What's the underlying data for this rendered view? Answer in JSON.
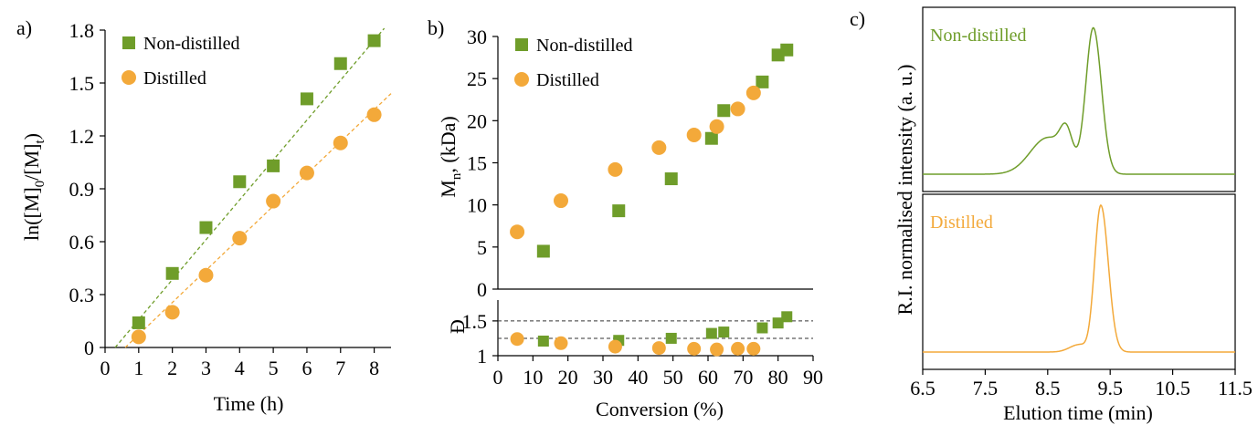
{
  "colors": {
    "non_distilled": "#6f9d2a",
    "distilled": "#f3a93a",
    "axis": "#000000"
  },
  "panels": {
    "a": {
      "letter": "a)",
      "legend": [
        "Non-distilled",
        "Distilled"
      ]
    },
    "b": {
      "letter": "b)",
      "legend": [
        "Non-distilled",
        "Distilled"
      ]
    },
    "c": {
      "letter": "c)",
      "top_label": "Non-distilled",
      "bottom_label": "Distilled"
    }
  },
  "chart_data": [
    {
      "id": "a",
      "type": "scatter",
      "xlabel": "Time (h)",
      "ylabel": "ln([M]0/[M]t)",
      "xlim": [
        0,
        8.5
      ],
      "ylim": [
        0,
        1.8
      ],
      "xticks": [
        "0",
        "1",
        "2",
        "3",
        "4",
        "5",
        "6",
        "7",
        "8"
      ],
      "yticks": [
        "0",
        "0.3",
        "0.6",
        "0.9",
        "1.2",
        "1.5",
        "1.8"
      ],
      "legend_position": "top-left",
      "series": [
        {
          "name": "Non-distilled",
          "marker": "square",
          "x": [
            1,
            2,
            3,
            4,
            5,
            6,
            7,
            8
          ],
          "y": [
            0.14,
            0.42,
            0.68,
            0.94,
            1.03,
            1.41,
            1.61,
            1.74
          ],
          "fit": [
            [
              0.3,
              0
            ],
            [
              8.3,
              1.81
            ]
          ]
        },
        {
          "name": "Distilled",
          "marker": "circle",
          "x": [
            1,
            2,
            3,
            4,
            5,
            6,
            7,
            8
          ],
          "y": [
            0.06,
            0.2,
            0.41,
            0.62,
            0.83,
            0.99,
            1.16,
            1.32
          ],
          "fit": [
            [
              0.6,
              0
            ],
            [
              8.5,
              1.44
            ]
          ]
        }
      ]
    },
    {
      "id": "b_top",
      "type": "scatter",
      "xlabel": "Conversion (%)",
      "ylabel": "Mn, (kDa)",
      "ylabel_main": "M",
      "ylabel_sub": "n",
      "ylabel_rest": ", (kDa)",
      "xlim": [
        0,
        90
      ],
      "ylim": [
        0,
        30
      ],
      "xticks": [
        "0",
        "10",
        "20",
        "30",
        "40",
        "50",
        "60",
        "70",
        "80",
        "90"
      ],
      "yticks": [
        "0",
        "5",
        "10",
        "15",
        "20",
        "25",
        "30"
      ],
      "legend_position": "top-left",
      "series": [
        {
          "name": "Non-distilled",
          "marker": "square",
          "x": [
            13,
            34.5,
            49.5,
            61,
            64.5,
            75.5,
            80,
            82.5
          ],
          "y": [
            4.5,
            9.3,
            13.1,
            17.9,
            21.2,
            24.6,
            27.8,
            28.4
          ]
        },
        {
          "name": "Distilled",
          "marker": "circle",
          "x": [
            5.5,
            18,
            33.5,
            46,
            56,
            62.5,
            68.5,
            73
          ],
          "y": [
            6.8,
            10.5,
            14.2,
            16.8,
            18.3,
            19.3,
            21.4,
            23.3
          ]
        }
      ]
    },
    {
      "id": "b_bottom",
      "type": "scatter",
      "ylabel": "Đ",
      "xlim": [
        0,
        90
      ],
      "ylim": [
        1,
        1.8
      ],
      "yticks": [
        "1",
        "1.5"
      ],
      "reference_lines": [
        1.25,
        1.5
      ],
      "series": [
        {
          "name": "Non-distilled",
          "marker": "square",
          "x": [
            13,
            34.5,
            49.5,
            61,
            64.5,
            75.5,
            80,
            82.5
          ],
          "y": [
            1.21,
            1.22,
            1.25,
            1.32,
            1.34,
            1.4,
            1.47,
            1.56
          ]
        },
        {
          "name": "Distilled",
          "marker": "circle",
          "x": [
            5.5,
            18,
            33.5,
            46,
            56,
            62.5,
            68.5,
            73
          ],
          "y": [
            1.24,
            1.18,
            1.13,
            1.11,
            1.1,
            1.09,
            1.1,
            1.1
          ]
        }
      ]
    },
    {
      "id": "c",
      "type": "line",
      "xlabel": "Elution time (min)",
      "ylabel": "R.I. normalised intensity (a. u.)",
      "xlim": [
        6.5,
        11.5
      ],
      "xticks": [
        "6.5",
        "7.5",
        "8.5",
        "9.5",
        "10.5",
        "11.5"
      ],
      "series": [
        {
          "name": "Non-distilled",
          "peaks": [
            {
              "center": 9.23,
              "height": 1.0,
              "left_width": 0.12,
              "right_width": 0.13
            },
            {
              "center": 8.8,
              "height": 0.22,
              "left_width": 0.1,
              "right_width": 0.1
            },
            {
              "center": 8.5,
              "height": 0.25,
              "left_width": 0.28,
              "right_width": 0.25
            }
          ]
        },
        {
          "name": "Distilled",
          "peaks": [
            {
              "center": 9.35,
              "height": 1.0,
              "left_width": 0.1,
              "right_width": 0.12
            },
            {
              "center": 9.0,
              "height": 0.05,
              "left_width": 0.15,
              "right_width": 0.1
            }
          ]
        }
      ]
    }
  ]
}
